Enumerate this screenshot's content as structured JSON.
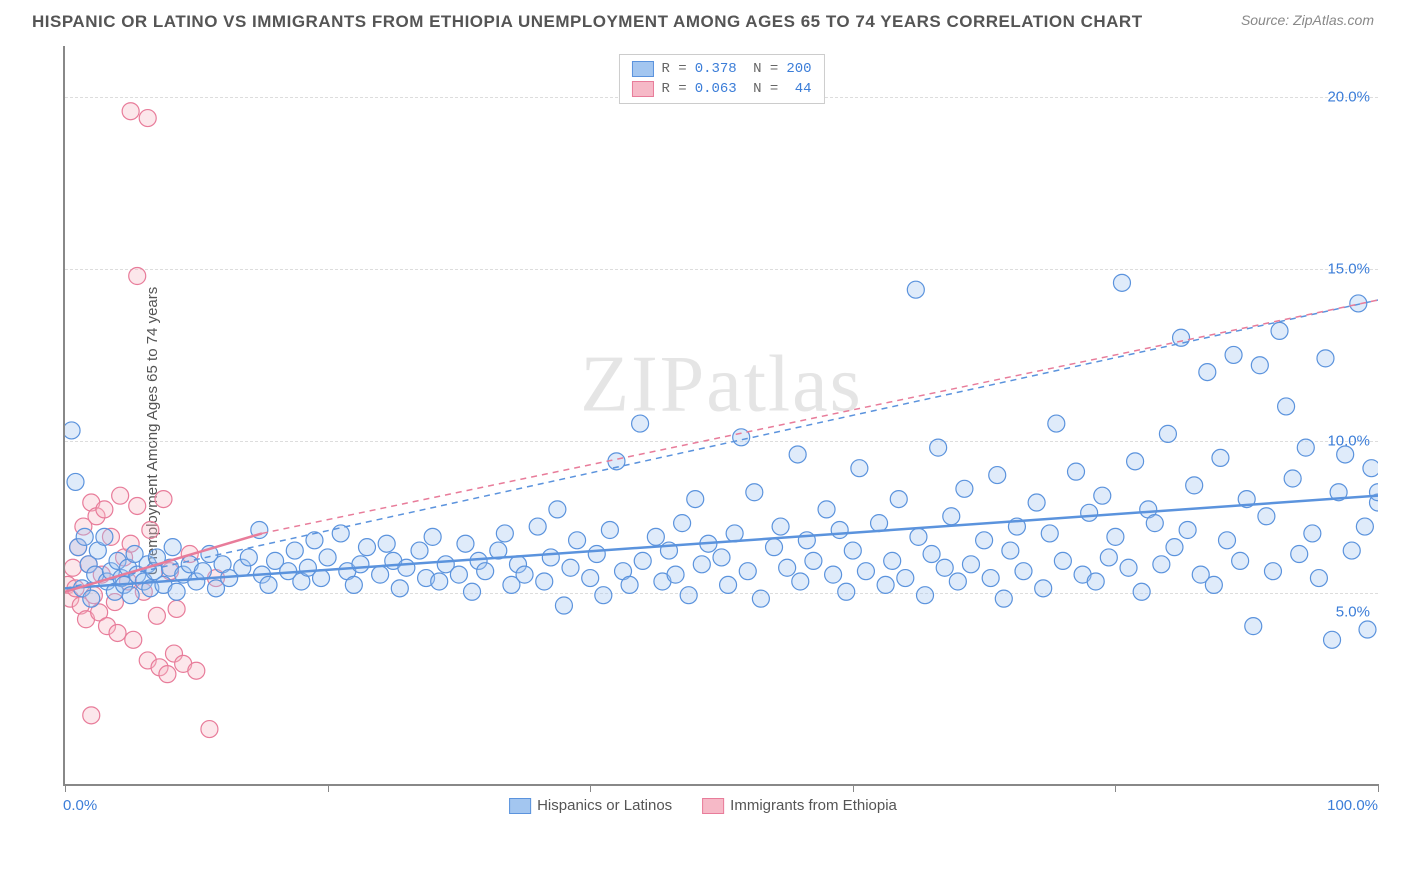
{
  "header": {
    "title": "HISPANIC OR LATINO VS IMMIGRANTS FROM ETHIOPIA UNEMPLOYMENT AMONG AGES 65 TO 74 YEARS CORRELATION CHART",
    "source": "Source: ZipAtlas.com"
  },
  "chart": {
    "type": "scatter",
    "watermark": "ZIPatlas",
    "y_label": "Unemployment Among Ages 65 to 74 years",
    "xlim": [
      0,
      100
    ],
    "ylim": [
      0,
      21.5
    ],
    "x_ticks": [
      0,
      20,
      40,
      60,
      80,
      100
    ],
    "y_gridlines": [
      5.56,
      10.0,
      15.0,
      20.0
    ],
    "y_tick_labels": [
      {
        "v": 5.0,
        "label": "5.0%"
      },
      {
        "v": 10.0,
        "label": "10.0%"
      },
      {
        "v": 15.0,
        "label": "15.0%"
      },
      {
        "v": 20.0,
        "label": "20.0%"
      }
    ],
    "x_axis_labels": {
      "left": "0.0%",
      "right": "100.0%"
    },
    "marker_radius": 8.5,
    "background_color": "#ffffff",
    "grid_color": "#dddddd",
    "axis_color": "#888888",
    "series": [
      {
        "id": "hispanic",
        "label": "Hispanics or Latinos",
        "fill": "#a3c6f0",
        "stroke": "#5b93dd",
        "R": "0.378",
        "N": "200",
        "trend_solid": {
          "x1": 0,
          "y1": 5.7,
          "x2": 100,
          "y2": 8.4
        },
        "trend_dash": {
          "x1": 0,
          "y1": 5.7,
          "x2": 100,
          "y2": 14.1
        },
        "points": [
          [
            0.5,
            10.3
          ],
          [
            0.8,
            8.8
          ],
          [
            1.0,
            6.9
          ],
          [
            1.3,
            5.7
          ],
          [
            1.5,
            7.2
          ],
          [
            1.8,
            6.4
          ],
          [
            2.0,
            5.4
          ],
          [
            2.3,
            6.1
          ],
          [
            2.5,
            6.8
          ],
          [
            3.0,
            7.2
          ],
          [
            3.2,
            5.9
          ],
          [
            3.5,
            6.2
          ],
          [
            3.8,
            5.6
          ],
          [
            4.0,
            6.5
          ],
          [
            4.3,
            6.0
          ],
          [
            4.5,
            5.8
          ],
          [
            4.8,
            6.3
          ],
          [
            5.0,
            5.5
          ],
          [
            5.3,
            6.7
          ],
          [
            5.5,
            6.1
          ],
          [
            6.0,
            5.9
          ],
          [
            6.3,
            6.4
          ],
          [
            6.5,
            5.7
          ],
          [
            6.8,
            6.2
          ],
          [
            7.0,
            6.6
          ],
          [
            7.5,
            5.8
          ],
          [
            8.0,
            6.3
          ],
          [
            8.2,
            6.9
          ],
          [
            8.5,
            5.6
          ],
          [
            9.0,
            6.1
          ],
          [
            9.5,
            6.4
          ],
          [
            10.0,
            5.9
          ],
          [
            10.5,
            6.2
          ],
          [
            11.0,
            6.7
          ],
          [
            11.5,
            5.7
          ],
          [
            12.0,
            6.4
          ],
          [
            12.5,
            6.0
          ],
          [
            13.5,
            6.3
          ],
          [
            14.0,
            6.6
          ],
          [
            14.8,
            7.4
          ],
          [
            15.0,
            6.1
          ],
          [
            15.5,
            5.8
          ],
          [
            16.0,
            6.5
          ],
          [
            17.0,
            6.2
          ],
          [
            17.5,
            6.8
          ],
          [
            18.0,
            5.9
          ],
          [
            18.5,
            6.3
          ],
          [
            19.0,
            7.1
          ],
          [
            19.5,
            6.0
          ],
          [
            20.0,
            6.6
          ],
          [
            21.0,
            7.3
          ],
          [
            21.5,
            6.2
          ],
          [
            22.0,
            5.8
          ],
          [
            22.5,
            6.4
          ],
          [
            23.0,
            6.9
          ],
          [
            24.0,
            6.1
          ],
          [
            24.5,
            7.0
          ],
          [
            25.0,
            6.5
          ],
          [
            25.5,
            5.7
          ],
          [
            26.0,
            6.3
          ],
          [
            27.0,
            6.8
          ],
          [
            27.5,
            6.0
          ],
          [
            28.0,
            7.2
          ],
          [
            28.5,
            5.9
          ],
          [
            29.0,
            6.4
          ],
          [
            30.0,
            6.1
          ],
          [
            30.5,
            7.0
          ],
          [
            31.0,
            5.6
          ],
          [
            31.5,
            6.5
          ],
          [
            32.0,
            6.2
          ],
          [
            33.0,
            6.8
          ],
          [
            33.5,
            7.3
          ],
          [
            34.0,
            5.8
          ],
          [
            34.5,
            6.4
          ],
          [
            35.0,
            6.1
          ],
          [
            36.0,
            7.5
          ],
          [
            36.5,
            5.9
          ],
          [
            37.0,
            6.6
          ],
          [
            37.5,
            8.0
          ],
          [
            38.0,
            5.2
          ],
          [
            38.5,
            6.3
          ],
          [
            39.0,
            7.1
          ],
          [
            40.0,
            6.0
          ],
          [
            40.5,
            6.7
          ],
          [
            41.0,
            5.5
          ],
          [
            41.5,
            7.4
          ],
          [
            42.0,
            9.4
          ],
          [
            42.5,
            6.2
          ],
          [
            43.0,
            5.8
          ],
          [
            43.8,
            10.5
          ],
          [
            44.0,
            6.5
          ],
          [
            45.0,
            7.2
          ],
          [
            45.5,
            5.9
          ],
          [
            46.0,
            6.8
          ],
          [
            46.5,
            6.1
          ],
          [
            47.0,
            7.6
          ],
          [
            47.5,
            5.5
          ],
          [
            48.0,
            8.3
          ],
          [
            48.5,
            6.4
          ],
          [
            49.0,
            7.0
          ],
          [
            50.0,
            6.6
          ],
          [
            50.5,
            5.8
          ],
          [
            51.0,
            7.3
          ],
          [
            51.5,
            10.1
          ],
          [
            52.0,
            6.2
          ],
          [
            52.5,
            8.5
          ],
          [
            53.0,
            5.4
          ],
          [
            54.0,
            6.9
          ],
          [
            54.5,
            7.5
          ],
          [
            55.0,
            6.3
          ],
          [
            55.8,
            9.6
          ],
          [
            56.0,
            5.9
          ],
          [
            56.5,
            7.1
          ],
          [
            57.0,
            6.5
          ],
          [
            58.0,
            8.0
          ],
          [
            58.5,
            6.1
          ],
          [
            59.0,
            7.4
          ],
          [
            59.5,
            5.6
          ],
          [
            60.0,
            6.8
          ],
          [
            60.5,
            9.2
          ],
          [
            61.0,
            6.2
          ],
          [
            62.0,
            7.6
          ],
          [
            62.5,
            5.8
          ],
          [
            63.0,
            6.5
          ],
          [
            63.5,
            8.3
          ],
          [
            64.0,
            6.0
          ],
          [
            64.8,
            14.4
          ],
          [
            65.0,
            7.2
          ],
          [
            65.5,
            5.5
          ],
          [
            66.0,
            6.7
          ],
          [
            66.5,
            9.8
          ],
          [
            67.0,
            6.3
          ],
          [
            67.5,
            7.8
          ],
          [
            68.0,
            5.9
          ],
          [
            68.5,
            8.6
          ],
          [
            69.0,
            6.4
          ],
          [
            70.0,
            7.1
          ],
          [
            70.5,
            6.0
          ],
          [
            71.0,
            9.0
          ],
          [
            71.5,
            5.4
          ],
          [
            72.0,
            6.8
          ],
          [
            72.5,
            7.5
          ],
          [
            73.0,
            6.2
          ],
          [
            74.0,
            8.2
          ],
          [
            74.5,
            5.7
          ],
          [
            75.0,
            7.3
          ],
          [
            75.5,
            10.5
          ],
          [
            76.0,
            6.5
          ],
          [
            77.0,
            9.1
          ],
          [
            77.5,
            6.1
          ],
          [
            78.0,
            7.9
          ],
          [
            78.5,
            5.9
          ],
          [
            79.0,
            8.4
          ],
          [
            79.5,
            6.6
          ],
          [
            80.0,
            7.2
          ],
          [
            80.5,
            14.6
          ],
          [
            81.0,
            6.3
          ],
          [
            81.5,
            9.4
          ],
          [
            82.0,
            5.6
          ],
          [
            82.5,
            8.0
          ],
          [
            83.0,
            7.6
          ],
          [
            83.5,
            6.4
          ],
          [
            84.0,
            10.2
          ],
          [
            84.5,
            6.9
          ],
          [
            85.0,
            13.0
          ],
          [
            85.5,
            7.4
          ],
          [
            86.0,
            8.7
          ],
          [
            86.5,
            6.1
          ],
          [
            87.0,
            12.0
          ],
          [
            87.5,
            5.8
          ],
          [
            88.0,
            9.5
          ],
          [
            88.5,
            7.1
          ],
          [
            89.0,
            12.5
          ],
          [
            89.5,
            6.5
          ],
          [
            90.0,
            8.3
          ],
          [
            90.5,
            4.6
          ],
          [
            91.0,
            12.2
          ],
          [
            91.5,
            7.8
          ],
          [
            92.0,
            6.2
          ],
          [
            92.5,
            13.2
          ],
          [
            93.0,
            11.0
          ],
          [
            93.5,
            8.9
          ],
          [
            94.0,
            6.7
          ],
          [
            94.5,
            9.8
          ],
          [
            95.0,
            7.3
          ],
          [
            95.5,
            6.0
          ],
          [
            96.0,
            12.4
          ],
          [
            96.5,
            4.2
          ],
          [
            97.0,
            8.5
          ],
          [
            97.5,
            9.6
          ],
          [
            98.0,
            6.8
          ],
          [
            98.5,
            14.0
          ],
          [
            99.0,
            7.5
          ],
          [
            99.2,
            4.5
          ],
          [
            99.5,
            9.2
          ],
          [
            100.0,
            8.2
          ],
          [
            100.0,
            8.5
          ]
        ]
      },
      {
        "id": "ethiopia",
        "label": "Immigrants from Ethiopia",
        "fill": "#f6b9c7",
        "stroke": "#e87c9a",
        "R": "0.063",
        "N": "44",
        "trend_solid": {
          "x1": 0,
          "y1": 5.6,
          "x2": 15,
          "y2": 7.3
        },
        "trend_dash": {
          "x1": 15,
          "y1": 7.3,
          "x2": 100,
          "y2": 14.1
        },
        "points": [
          [
            0.2,
            5.8
          ],
          [
            0.4,
            5.4
          ],
          [
            0.6,
            6.3
          ],
          [
            0.8,
            5.7
          ],
          [
            1.0,
            6.9
          ],
          [
            1.2,
            5.2
          ],
          [
            1.4,
            7.5
          ],
          [
            1.6,
            4.8
          ],
          [
            1.8,
            6.4
          ],
          [
            2.0,
            8.2
          ],
          [
            2.2,
            5.5
          ],
          [
            2.4,
            7.8
          ],
          [
            2.6,
            5.0
          ],
          [
            2.8,
            6.1
          ],
          [
            3.0,
            8.0
          ],
          [
            3.2,
            4.6
          ],
          [
            3.5,
            7.2
          ],
          [
            3.8,
            5.3
          ],
          [
            4.0,
            4.4
          ],
          [
            4.2,
            8.4
          ],
          [
            4.5,
            6.6
          ],
          [
            4.8,
            5.9
          ],
          [
            5.0,
            7.0
          ],
          [
            5.2,
            4.2
          ],
          [
            5.5,
            8.1
          ],
          [
            6.0,
            5.6
          ],
          [
            6.3,
            3.6
          ],
          [
            6.5,
            7.4
          ],
          [
            7.0,
            4.9
          ],
          [
            7.2,
            3.4
          ],
          [
            7.5,
            8.3
          ],
          [
            7.8,
            3.2
          ],
          [
            8.0,
            6.2
          ],
          [
            8.3,
            3.8
          ],
          [
            8.5,
            5.1
          ],
          [
            9.0,
            3.5
          ],
          [
            9.5,
            6.7
          ],
          [
            10.0,
            3.3
          ],
          [
            11.0,
            1.6
          ],
          [
            11.5,
            6.0
          ],
          [
            5.0,
            19.6
          ],
          [
            6.3,
            19.4
          ],
          [
            5.5,
            14.8
          ],
          [
            2.0,
            2.0
          ]
        ]
      }
    ]
  }
}
